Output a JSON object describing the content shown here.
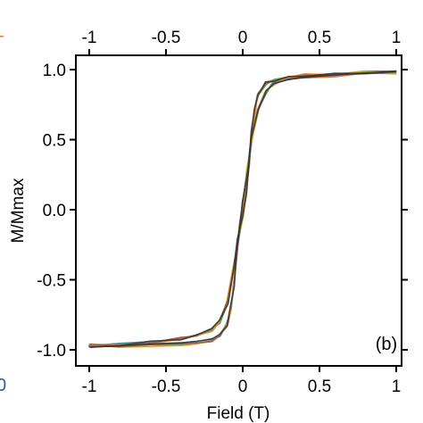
{
  "chart_data": {
    "type": "line",
    "title": "",
    "xlabel": "Field (T)",
    "ylabel": "M/Mmax",
    "xlim": [
      -1,
      1
    ],
    "ylim": [
      -1.05,
      1.05
    ],
    "x_ticks": [
      -1,
      -0.5,
      0,
      0.5,
      1
    ],
    "x_tick_labels": [
      "-1",
      "-0.5",
      "0",
      "0.5",
      "1"
    ],
    "y_ticks": [
      -1.0,
      -0.5,
      0.0,
      0.5,
      1.0
    ],
    "y_tick_labels": [
      "-1.0",
      "-0.5",
      "0.0",
      "0.5",
      "1.0"
    ],
    "top_axis_tick_labels": [
      "-1",
      "-0.5",
      "0",
      "0.5",
      "1"
    ],
    "panel_label": "(b)",
    "grid": false,
    "legend": "none",
    "colors": [
      "#d62728",
      "#1f77b4",
      "#2ca02c",
      "#9467bd",
      "#17becf",
      "#bcbd22",
      "#ff7f0e",
      "#8c564b",
      "#333333"
    ],
    "series": [
      {
        "branch": "ascending",
        "x": [
          -1.0,
          -0.8,
          -0.6,
          -0.4,
          -0.3,
          -0.2,
          -0.15,
          -0.1,
          -0.06,
          -0.03,
          0.0,
          0.02,
          0.04,
          0.06,
          0.08,
          0.1,
          0.15,
          0.2,
          0.3,
          0.4,
          0.6,
          0.8,
          1.0
        ],
        "y": [
          -0.97,
          -0.965,
          -0.95,
          -0.92,
          -0.9,
          -0.86,
          -0.8,
          -0.66,
          -0.42,
          -0.22,
          -0.04,
          0.12,
          0.33,
          0.55,
          0.72,
          0.82,
          0.9,
          0.93,
          0.95,
          0.96,
          0.97,
          0.98,
          0.98
        ]
      },
      {
        "branch": "descending",
        "x": [
          1.0,
          0.8,
          0.6,
          0.4,
          0.3,
          0.2,
          0.15,
          0.1,
          0.06,
          0.03,
          0.0,
          -0.02,
          -0.04,
          -0.06,
          -0.08,
          -0.1,
          -0.15,
          -0.2,
          -0.3,
          -0.4,
          -0.6,
          -0.8,
          -1.0
        ],
        "y": [
          0.98,
          0.975,
          0.96,
          0.95,
          0.94,
          0.9,
          0.84,
          0.72,
          0.5,
          0.28,
          0.05,
          -0.12,
          -0.33,
          -0.55,
          -0.72,
          -0.82,
          -0.9,
          -0.93,
          -0.95,
          -0.96,
          -0.965,
          -0.97,
          -0.97
        ]
      }
    ]
  },
  "edge": {
    "top_left_fragment": "-",
    "bottom_left_fragment": "0",
    "accent_orange": "#e8742b",
    "accent_blue": "#1f5fa8"
  }
}
